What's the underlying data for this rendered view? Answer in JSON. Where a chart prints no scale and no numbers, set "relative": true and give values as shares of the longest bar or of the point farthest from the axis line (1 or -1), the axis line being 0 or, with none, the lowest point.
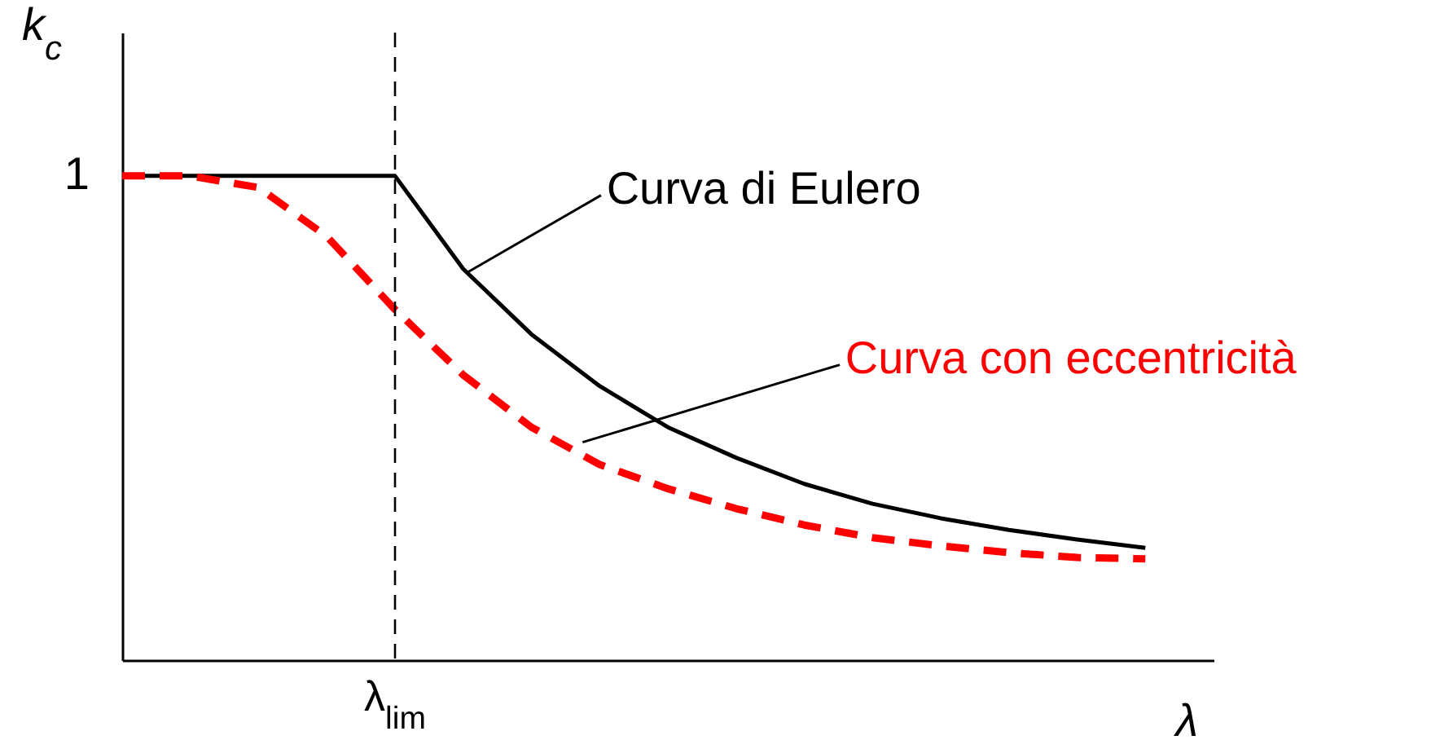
{
  "chart_data": {
    "type": "line",
    "relative": true,
    "ylabel": "k$_{c}$",
    "xlabel": "λ",
    "categories": [
      null,
      null,
      null,
      null,
      null,
      null,
      null,
      null,
      null,
      null,
      null,
      null,
      null,
      null,
      null,
      null,
      null
    ],
    "series": [
      {
        "name": "Curva di Eulero",
        "color": "#000000",
        "line_style": "solid",
        "values": [
          1,
          1,
          1,
          1,
          1,
          0.808,
          0.673,
          0.566,
          0.481,
          0.418,
          0.364,
          0.323,
          0.293,
          0.269,
          0.249,
          0.232,
          null
        ]
      },
      {
        "name": "Curva con eccentricità",
        "color": "#ff0000",
        "line_style": "dashed",
        "values": [
          1,
          1,
          0.976,
          0.875,
          0.724,
          0.589,
          0.481,
          0.404,
          0.354,
          0.313,
          0.279,
          0.253,
          0.236,
          0.222,
          0.212,
          0.209,
          null
        ]
      }
    ],
    "annotations": [
      "1",
      "λ$_{lim}$"
    ],
    "grid": false
  }
}
